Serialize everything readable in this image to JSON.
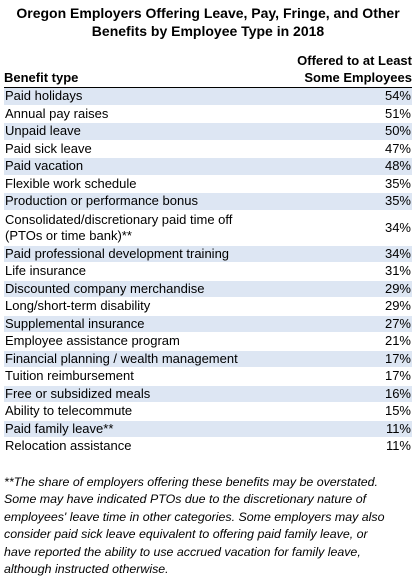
{
  "title": {
    "line1": "Oregon Employers Offering Leave, Pay, Fringe, and Other",
    "line2": "Benefits by Employee Type in 2018"
  },
  "header": {
    "benefit_type": "Benefit type",
    "offered_line1": "Offered to at Least",
    "offered_line2": "Some Employees"
  },
  "rows": [
    {
      "name": "Paid holidays",
      "value": "54%"
    },
    {
      "name": "Annual pay raises",
      "value": "51%"
    },
    {
      "name": "Unpaid leave",
      "value": "50%"
    },
    {
      "name": "Paid sick leave",
      "value": "47%"
    },
    {
      "name": "Paid vacation",
      "value": "48%"
    },
    {
      "name": "Flexible work schedule",
      "value": "35%"
    },
    {
      "name": "Production or performance bonus",
      "value": "35%"
    },
    {
      "name_line1": "Consolidated/discretionary paid time off",
      "name_line2": "(PTOs or time bank)**",
      "value": "34%"
    },
    {
      "name": "Paid professional development training",
      "value": "34%"
    },
    {
      "name": "Life insurance",
      "value": "31%"
    },
    {
      "name": "Discounted company merchandise",
      "value": "29%"
    },
    {
      "name": "Long/short-term disability",
      "value": "29%"
    },
    {
      "name": "Supplemental insurance",
      "value": "27%"
    },
    {
      "name": "Employee assistance program",
      "value": "21%"
    },
    {
      "name": "Financial planning / wealth management",
      "value": "17%"
    },
    {
      "name": "Tuition reimbursement",
      "value": "17%"
    },
    {
      "name": "Free or subsidized meals",
      "value": "16%"
    },
    {
      "name": "Ability to telecommute",
      "value": "15%"
    },
    {
      "name": "Paid family leave**",
      "value": "11%"
    },
    {
      "name": "Relocation assistance",
      "value": "11%"
    }
  ],
  "footnote": {
    "line1": "**The share of employers offering these benefits may be overstated.",
    "line2": "Some may have indicated PTOs due to the discretionary nature of",
    "line3": "employees' leave time in other categories. Some employers may also",
    "line4": "consider paid sick leave equivalent to offering paid family leave, or",
    "line5": "have reported the ability to use accrued vacation for family leave,",
    "line6": "although instructed otherwise."
  },
  "colors": {
    "row_shade": "#dde6f3",
    "text": "#000000",
    "background": "#ffffff"
  }
}
